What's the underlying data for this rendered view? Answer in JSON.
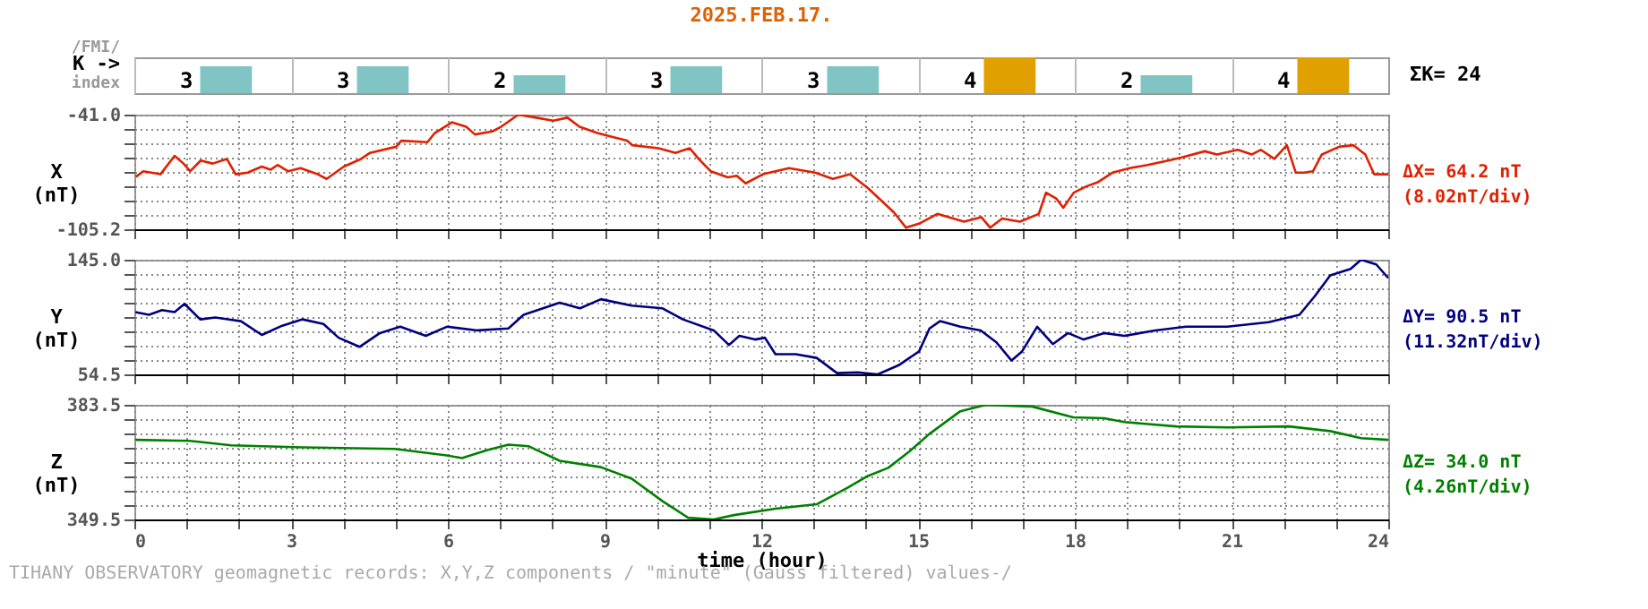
{
  "chart_data": [
    {
      "type": "bar",
      "title": "2025.FEB.17.",
      "categories": [
        null,
        null,
        null,
        null,
        null,
        null,
        null,
        null
      ],
      "values": [
        3,
        3,
        2,
        3,
        3,
        4,
        2,
        4
      ],
      "colors": [
        "#80c4c4",
        "#80c4c4",
        "#80c4c4",
        "#80c4c4",
        "#80c4c4",
        "#e0a000",
        "#80c4c4",
        "#e0a000"
      ],
      "data_labels": true,
      "tick_labels": false,
      "annotations": [
        "/FMI/",
        "K ->",
        "index",
        "ΣK= 24"
      ]
    },
    {
      "type": "line",
      "ylabel": "X (nT)",
      "xlim": [
        0,
        24
      ],
      "ylim": [
        -105.2,
        -41.0
      ],
      "tick_labels": "y",
      "grid": true,
      "marker": "none",
      "xticks": [
        0,
        {
          "value": 1,
          "label": null
        },
        {
          "value": 2,
          "label": null
        },
        3,
        {
          "value": 4,
          "label": null
        },
        {
          "value": 5,
          "label": null
        },
        6,
        {
          "value": 7,
          "label": null
        },
        {
          "value": 8,
          "label": null
        },
        9,
        {
          "value": 10,
          "label": null
        },
        {
          "value": 11,
          "label": null
        },
        12,
        {
          "value": 13,
          "label": null
        },
        {
          "value": 14,
          "label": null
        },
        15,
        {
          "value": 16,
          "label": null
        },
        {
          "value": 17,
          "label": null
        },
        18,
        {
          "value": 19,
          "label": null
        },
        {
          "value": 20,
          "label": null
        },
        21,
        {
          "value": 22,
          "label": null
        },
        {
          "value": 23,
          "label": null
        },
        24
      ],
      "yticks": [
        {
          "value": -105.2,
          "label": "-105.2"
        },
        {
          "value": -97.2,
          "label": null
        },
        {
          "value": -89.2,
          "label": null
        },
        {
          "value": -81.1,
          "label": null
        },
        {
          "value": -73.1,
          "label": null
        },
        {
          "value": -65.1,
          "label": null
        },
        {
          "value": -57.0,
          "label": null
        },
        {
          "value": -49.0,
          "label": null
        },
        {
          "value": -41,
          "label": "-41.0"
        }
      ],
      "annotations": [
        "ΔX= 64.2 nT",
        "(8.02nT/div)"
      ],
      "series": [
        {
          "color": "#e02000",
          "x": [
            0.03,
            0.17,
            0.5,
            0.77,
            0.94,
            1.07,
            1.27,
            1.5,
            1.77,
            1.94,
            2.17,
            2.44,
            2.61,
            2.74,
            2.94,
            3.18,
            3.51,
            3.68,
            4.01,
            4.34,
            4.51,
            5.01,
            5.11,
            5.61,
            5.75,
            6.08,
            6.35,
            6.52,
            6.85,
            7.02,
            7.35,
            7.69,
            8.02,
            8.29,
            8.52,
            8.86,
            9.19,
            9.43,
            9.53,
            10.03,
            10.36,
            10.63,
            10.8,
            11.03,
            11.36,
            11.53,
            11.7,
            12.03,
            12.53,
            13.03,
            13.37,
            13.7,
            14.04,
            14.54,
            14.77,
            15.04,
            15.37,
            15.88,
            16.21,
            16.38,
            16.61,
            16.95,
            17.31,
            17.45,
            17.65,
            17.78,
            17.98,
            18.22,
            18.45,
            18.72,
            19.05,
            19.39,
            19.79,
            20.05,
            20.49,
            20.72,
            21.12,
            21.39,
            21.56,
            21.82,
            22.06,
            22.23,
            22.39,
            22.56,
            22.73,
            23.06,
            23.33,
            23.56,
            23.73,
            24
          ],
          "values": [
            -75.8,
            -72.7,
            -74.4,
            -64.1,
            -68.4,
            -72.7,
            -66.7,
            -68.4,
            -65.8,
            -74.4,
            -73.5,
            -70.1,
            -71.8,
            -69.2,
            -72.7,
            -71.0,
            -74.4,
            -77.0,
            -70.1,
            -65.8,
            -62.4,
            -59.0,
            -55.6,
            -56.4,
            -51.3,
            -45.3,
            -47.8,
            -52.1,
            -50.4,
            -47.8,
            -41.0,
            -42.7,
            -44.4,
            -42.7,
            -47.8,
            -51.3,
            -53.8,
            -55.6,
            -58.1,
            -59.8,
            -62.4,
            -59.8,
            -65.8,
            -72.7,
            -76.1,
            -75.2,
            -79.5,
            -74.4,
            -71.0,
            -73.5,
            -77.0,
            -74.4,
            -82.1,
            -95.8,
            -104.3,
            -101.8,
            -96.6,
            -100.9,
            -98.4,
            -104.3,
            -99.2,
            -100.9,
            -96.6,
            -84.7,
            -88.1,
            -93.2,
            -84.7,
            -81.2,
            -78.7,
            -73.5,
            -71.0,
            -69.2,
            -66.7,
            -65.0,
            -61.5,
            -63.3,
            -60.7,
            -63.3,
            -60.7,
            -65.8,
            -58.1,
            -73.5,
            -73.5,
            -72.7,
            -63.3,
            -59.0,
            -58.1,
            -63.3,
            -74.4,
            -74.4
          ]
        }
      ]
    },
    {
      "type": "line",
      "ylabel": "Y (nT)",
      "xlim": [
        0,
        24
      ],
      "ylim": [
        54.5,
        145.0
      ],
      "tick_labels": "y",
      "grid": true,
      "marker": "none",
      "xticks": [
        0,
        {
          "value": 1,
          "label": null
        },
        {
          "value": 2,
          "label": null
        },
        3,
        {
          "value": 4,
          "label": null
        },
        {
          "value": 5,
          "label": null
        },
        6,
        {
          "value": 7,
          "label": null
        },
        {
          "value": 8,
          "label": null
        },
        9,
        {
          "value": 10,
          "label": null
        },
        {
          "value": 11,
          "label": null
        },
        12,
        {
          "value": 13,
          "label": null
        },
        {
          "value": 14,
          "label": null
        },
        15,
        {
          "value": 16,
          "label": null
        },
        {
          "value": 17,
          "label": null
        },
        18,
        {
          "value": 19,
          "label": null
        },
        {
          "value": 20,
          "label": null
        },
        21,
        {
          "value": 22,
          "label": null
        },
        {
          "value": 23,
          "label": null
        },
        24
      ],
      "yticks": [
        54.5,
        {
          "value": 65.8,
          "label": null
        },
        {
          "value": 77.1,
          "label": null
        },
        {
          "value": 88.4,
          "label": null
        },
        {
          "value": 99.8,
          "label": null
        },
        {
          "value": 111.1,
          "label": null
        },
        {
          "value": 122.4,
          "label": null
        },
        {
          "value": 133.7,
          "label": null
        },
        {
          "value": 145,
          "label": "145.0"
        }
      ],
      "annotations": [
        "ΔY= 90.5 nT",
        "(11.32nT/div)"
      ],
      "series": [
        {
          "color": "#000080",
          "x": [
            0.02,
            0.28,
            0.53,
            0.77,
            0.96,
            1.26,
            1.55,
            2.04,
            2.44,
            2.83,
            3.22,
            3.62,
            3.91,
            4.31,
            4.7,
            5.09,
            5.58,
            5.98,
            6.57,
            7.16,
            7.45,
            8.14,
            8.53,
            8.93,
            9.52,
            10.11,
            10.5,
            11.09,
            11.38,
            11.58,
            11.88,
            12.07,
            12.27,
            12.66,
            13.06,
            13.45,
            13.84,
            14.23,
            14.63,
            15.02,
            15.22,
            15.42,
            15.81,
            16.2,
            16.5,
            16.79,
            16.99,
            17.28,
            17.58,
            17.87,
            18.17,
            18.56,
            18.95,
            19.54,
            20.13,
            20.92,
            21.71,
            22.3,
            22.59,
            22.89,
            23.28,
            23.48,
            23.77,
            24
          ],
          "values": [
            103.7,
            101.5,
            105.2,
            103.7,
            110.2,
            97.9,
            99.4,
            96.5,
            85.6,
            92.9,
            97.9,
            94.3,
            83.4,
            76.2,
            87.1,
            92.1,
            84.9,
            92.1,
            89.2,
            90.7,
            101.5,
            111.1,
            106.6,
            113.8,
            108.8,
            106.6,
            97.9,
            89.2,
            77.7,
            84.9,
            82.0,
            83.4,
            70.4,
            70.4,
            67.5,
            55.5,
            56.0,
            54.5,
            61.7,
            72.6,
            90.7,
            96.5,
            92.1,
            89.2,
            79.8,
            65.4,
            72.6,
            92.1,
            78.4,
            87.1,
            82.0,
            87.1,
            84.9,
            89.2,
            92.1,
            92.1,
            95.7,
            101.5,
            116.0,
            132.6,
            137.7,
            145.0,
            141.3,
            130.5
          ]
        }
      ]
    },
    {
      "type": "line",
      "ylabel": "Z (nT)",
      "xlabel": "time (hour)",
      "xlim": [
        0,
        24
      ],
      "ylim": [
        349.5,
        383.5
      ],
      "grid": true,
      "marker": "none",
      "xticks": [
        0,
        {
          "value": 1,
          "label": null
        },
        {
          "value": 2,
          "label": null
        },
        3,
        {
          "value": 4,
          "label": null
        },
        {
          "value": 5,
          "label": null
        },
        6,
        {
          "value": 7,
          "label": null
        },
        {
          "value": 8,
          "label": null
        },
        9,
        {
          "value": 10,
          "label": null
        },
        {
          "value": 11,
          "label": null
        },
        12,
        {
          "value": 13,
          "label": null
        },
        {
          "value": 14,
          "label": null
        },
        15,
        {
          "value": 16,
          "label": null
        },
        {
          "value": 17,
          "label": null
        },
        18,
        {
          "value": 19,
          "label": null
        },
        {
          "value": 20,
          "label": null
        },
        21,
        {
          "value": 22,
          "label": null
        },
        {
          "value": 23,
          "label": null
        },
        24
      ],
      "yticks": [
        349.5,
        {
          "value": 353.75,
          "label": null
        },
        {
          "value": 358,
          "label": null
        },
        {
          "value": 362.25,
          "label": null
        },
        {
          "value": 366.5,
          "label": null
        },
        {
          "value": 370.75,
          "label": null
        },
        {
          "value": 375,
          "label": null
        },
        {
          "value": 379.25,
          "label": null
        },
        383.5
      ],
      "annotations": [
        "ΔZ= 34.0 nT",
        "(4.26nT/div)",
        "TIHANY OBSERVATORY   geomagnetic records:  X,Y,Z  components    / \"minute\" (Gauss filtered) values-/"
      ],
      "series": [
        {
          "color": "#008000",
          "x": [
            0.02,
            1.06,
            1.85,
            3.22,
            4.99,
            5.98,
            6.27,
            6.76,
            7.16,
            7.55,
            8.14,
            8.93,
            9.52,
            10.11,
            10.6,
            11.09,
            11.48,
            12.27,
            13.06,
            13.65,
            14.04,
            14.43,
            14.83,
            15.22,
            15.81,
            16.3,
            16.79,
            17.18,
            17.97,
            18.56,
            18.95,
            19.94,
            20.92,
            22.1,
            22.89,
            23.48,
            24
          ],
          "values": [
            373.1,
            372.8,
            371.5,
            370.9,
            370.4,
            368.5,
            367.7,
            370.1,
            371.7,
            371.2,
            366.9,
            365.0,
            361.6,
            354.9,
            350.0,
            349.5,
            350.8,
            352.7,
            354.0,
            358.9,
            362.4,
            364.8,
            369.6,
            374.9,
            381.6,
            383.5,
            383.2,
            383.0,
            379.8,
            379.5,
            378.4,
            377.1,
            376.8,
            377.1,
            375.7,
            373.6,
            373.1
          ]
        }
      ]
    }
  ]
}
